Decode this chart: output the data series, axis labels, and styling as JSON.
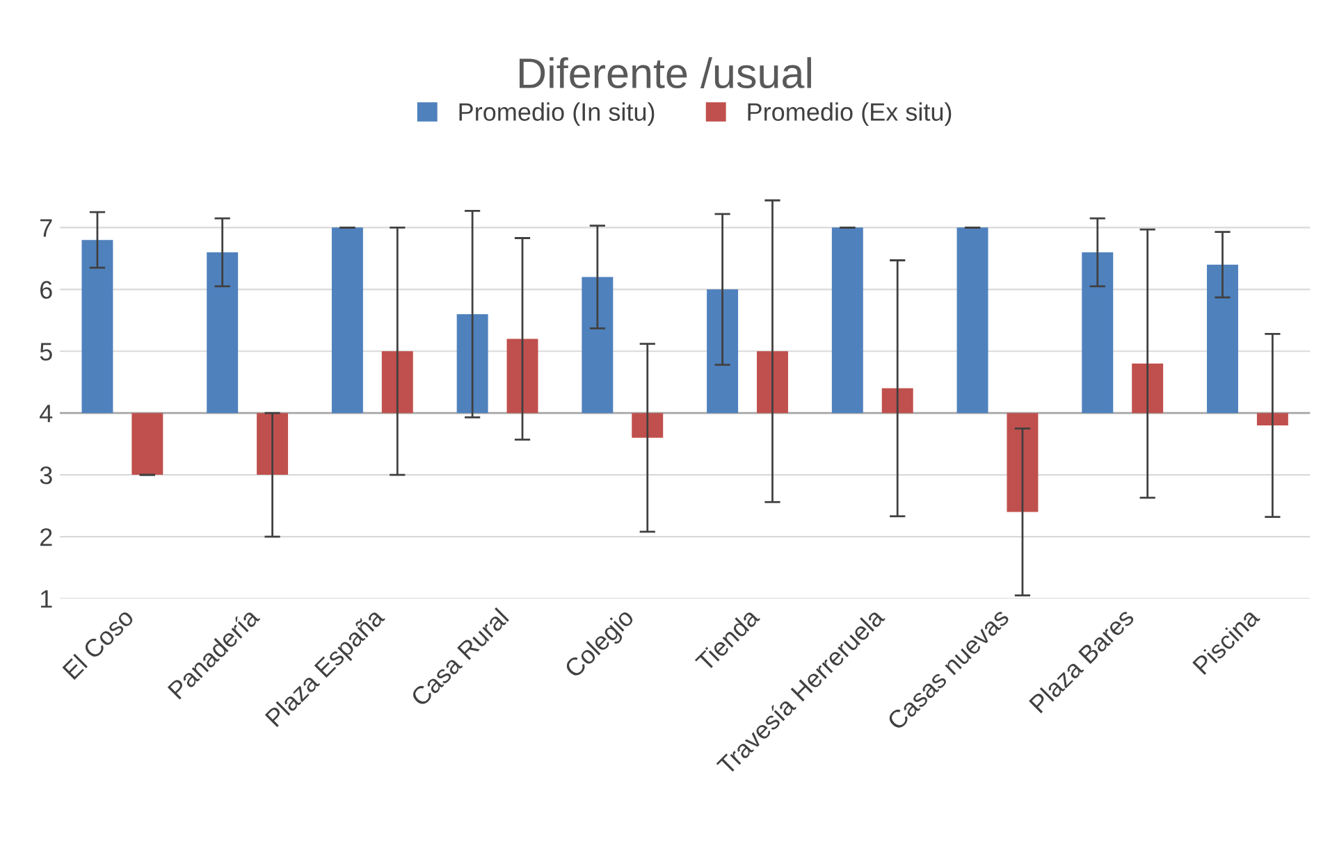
{
  "chart_data": {
    "type": "bar",
    "title": "Diferente /usual",
    "categories": [
      "El Coso",
      "Panadería",
      "Plaza España",
      "Casa Rural",
      "Colegio",
      "Tienda",
      "Travesía Herreruela",
      "Casas nuevas",
      "Plaza Bares",
      "Piscina"
    ],
    "series": [
      {
        "name": "Promedio (In situ)",
        "color": "#4f81bd",
        "base": [
          4,
          4,
          4,
          4,
          4,
          4,
          4,
          4,
          4,
          4
        ],
        "values": [
          2.8,
          2.6,
          3.0,
          1.6,
          2.2,
          2.0,
          3.0,
          3.0,
          2.6,
          2.4
        ],
        "errors": [
          0.45,
          0.55,
          0,
          1.67,
          0.83,
          1.22,
          0,
          0,
          0.55,
          0.53
        ]
      },
      {
        "name": "Promedio (Ex situ)",
        "color": "#c0504d",
        "base": [
          4,
          4,
          4,
          4,
          4,
          4,
          4,
          4,
          4,
          4
        ],
        "values": [
          -1.0,
          -1.0,
          1.0,
          1.2,
          -0.4,
          1.0,
          0.4,
          -1.6,
          0.8,
          -0.2
        ],
        "errors": [
          0,
          1.0,
          2.0,
          1.63,
          1.52,
          2.44,
          2.07,
          1.35,
          2.17,
          1.48
        ]
      }
    ],
    "ylim": [
      1,
      7.5
    ],
    "yticks": [
      1,
      2,
      3,
      4,
      5,
      6,
      7
    ],
    "ref_lines": [
      {
        "axis": "y",
        "value": 4,
        "color": "#a6a6a6"
      }
    ],
    "grid": "y",
    "legend": "top"
  }
}
